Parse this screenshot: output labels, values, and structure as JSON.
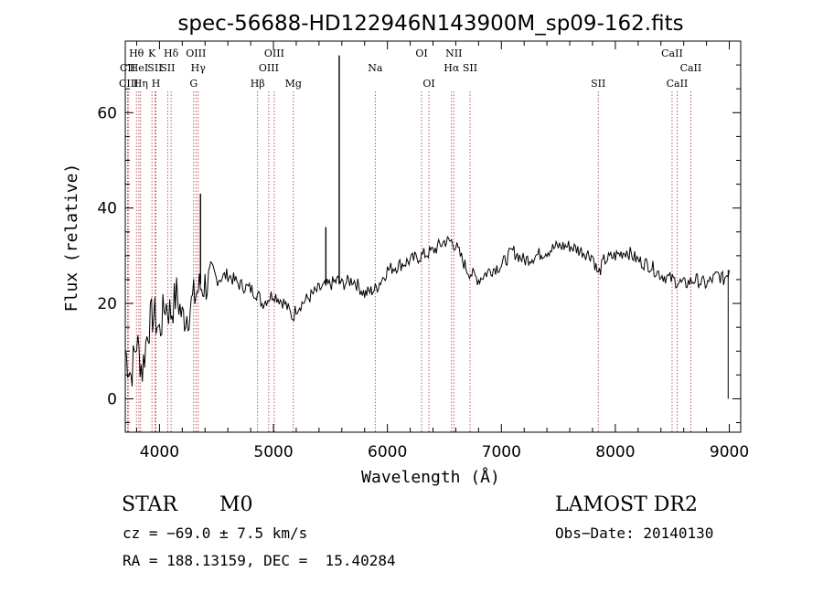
{
  "chart_data": {
    "type": "line",
    "title": "spec-56688-HD122946N143900M_sp09-162.fits",
    "xlabel": "Wavelength (Å)",
    "ylabel": "Flux (relative)",
    "xlim": [
      3700,
      9100
    ],
    "ylim": [
      -7,
      75
    ],
    "x_ticks": [
      4000,
      5000,
      6000,
      7000,
      8000,
      9000
    ],
    "y_ticks": [
      0,
      20,
      40,
      60
    ],
    "grid": false,
    "series": [
      {
        "color": "#000000",
        "x": [
          3700,
          3750,
          3800,
          3850,
          3900,
          3950,
          4000,
          4050,
          4100,
          4150,
          4200,
          4250,
          4300,
          4340,
          4400,
          4500,
          4600,
          4700,
          4800,
          4861,
          4900,
          5000,
          5100,
          5170,
          5200,
          5300,
          5400,
          5500,
          5577,
          5600,
          5700,
          5800,
          5893,
          5950,
          6000,
          6100,
          6200,
          6300,
          6400,
          6500,
          6563,
          6600,
          6700,
          6800,
          6900,
          7000,
          7100,
          7200,
          7300,
          7400,
          7500,
          7600,
          7700,
          7800,
          7850,
          7900,
          8000,
          8100,
          8200,
          8300,
          8400,
          8500,
          8600,
          8700,
          8800,
          8900,
          8950,
          9000
        ],
        "y": [
          10,
          5,
          12,
          6,
          15,
          18,
          14,
          20,
          18,
          22,
          17,
          18,
          21,
          23,
          24,
          25,
          26,
          24,
          23,
          22,
          20,
          22,
          20,
          17,
          19,
          21,
          23,
          24,
          25,
          24,
          25,
          22,
          23,
          25,
          27,
          28,
          29,
          30,
          31,
          33,
          33,
          32,
          27,
          25,
          27,
          28,
          31,
          29,
          30,
          31,
          32,
          32,
          31,
          30,
          26,
          29,
          30,
          31,
          29,
          28,
          26,
          25,
          24,
          25,
          24,
          26,
          25,
          27
        ]
      }
    ],
    "spikes": [
      {
        "x": 4360,
        "y": 43
      },
      {
        "x": 5577,
        "y": 72
      },
      {
        "x": 5460,
        "y": 36
      }
    ],
    "line_markers": [
      {
        "label": "CII",
        "x": 3720,
        "row": 2
      },
      {
        "label": "CIII",
        "x": 3730,
        "row": 3
      },
      {
        "label": "Hθ",
        "x": 3798,
        "row": 1
      },
      {
        "label": "HeI",
        "x": 3820,
        "row": 2
      },
      {
        "label": "Hη",
        "x": 3835,
        "row": 3
      },
      {
        "label": "K",
        "x": 3934,
        "row": 1
      },
      {
        "label": "SII",
        "x": 3960,
        "row": 2
      },
      {
        "label": "H",
        "x": 3969,
        "row": 3
      },
      {
        "label": "Hδ",
        "x": 4102,
        "row": 1
      },
      {
        "label": "SII",
        "x": 4072,
        "row": 2
      },
      {
        "label": "OIII",
        "x": 4320,
        "row": 1
      },
      {
        "label": "Hγ",
        "x": 4340,
        "row": 2
      },
      {
        "label": "G",
        "x": 4300,
        "row": 3
      },
      {
        "label": "Hβ",
        "x": 4861,
        "row": 3
      },
      {
        "label": "OIII",
        "x": 5007,
        "row": 1
      },
      {
        "label": "OIII",
        "x": 4959,
        "row": 2
      },
      {
        "label": "Mg",
        "x": 5175,
        "row": 3
      },
      {
        "label": "Na",
        "x": 5893,
        "row": 2
      },
      {
        "label": "OI",
        "x": 6300,
        "row": 1
      },
      {
        "label": "OI",
        "x": 6364,
        "row": 3
      },
      {
        "label": "NII",
        "x": 6583,
        "row": 1
      },
      {
        "label": "Hα",
        "x": 6563,
        "row": 2
      },
      {
        "label": "SII",
        "x": 6725,
        "row": 2
      },
      {
        "label": "SII",
        "x": 7850,
        "row": 3
      },
      {
        "label": "CaII",
        "x": 8498,
        "row": 1
      },
      {
        "label": "CaII",
        "x": 8662,
        "row": 2
      },
      {
        "label": "CaII",
        "x": 8542,
        "row": 3
      }
    ]
  },
  "info": {
    "class_label": "STAR",
    "subclass": "M0",
    "survey": "LAMOST DR2",
    "cz": "cz = −69.0 ± 7.5 km/s",
    "obs_date": "Obs−Date: 20140130",
    "coords": "RA = 188.13159, DEC =  15.40284"
  }
}
